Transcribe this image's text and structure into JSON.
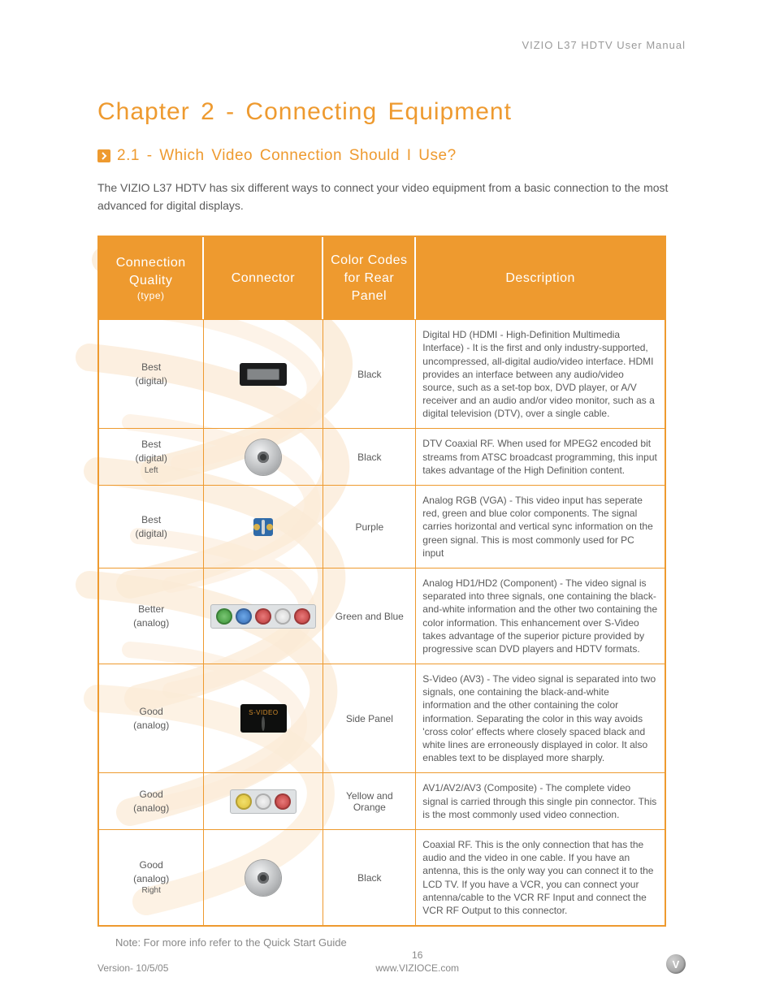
{
  "header": {
    "text": "VIZIO L37 HDTV User Manual"
  },
  "chapter_title": "Chapter 2 - Connecting Equipment",
  "section_title": "2.1 - Which Video Connection Should I Use?",
  "intro": "The VIZIO L37 HDTV has six different ways to connect your video equipment from a basic connection to the most advanced for digital displays.",
  "table": {
    "header_bg": "#ee9a2f",
    "header_fg": "#ffffff",
    "border_color": "#ee9a2f",
    "columns": [
      {
        "title": "Connection Quality",
        "sub": "(type)"
      },
      {
        "title": "Connector",
        "sub": ""
      },
      {
        "title": "Color Codes for Rear Panel",
        "sub": ""
      },
      {
        "title": "Description",
        "sub": ""
      }
    ],
    "rows": [
      {
        "quality": "Best",
        "quality_sub": "(digital)",
        "quality_sub2": "",
        "connector": "hdmi",
        "color_code": "Black",
        "description": "Digital HD (HDMI - High-Definition Multimedia Interface) - It is the first and only industry-supported, uncompressed, all-digital audio/video interface. HDMI provides an interface between any audio/video source, such as a set-top box, DVD player, or A/V receiver and an audio and/or video monitor, such as a digital television (DTV), over a single cable."
      },
      {
        "quality": "Best",
        "quality_sub": "(digital)",
        "quality_sub2": "Left",
        "connector": "coax",
        "color_code": "Black",
        "description": "DTV Coaxial RF.  When used for MPEG2 encoded bit streams from ATSC broadcast programming, this input takes advantage of the High Definition content."
      },
      {
        "quality": "Best",
        "quality_sub": "(digital)",
        "quality_sub2": "",
        "connector": "vga",
        "color_code": "Purple",
        "description": "Analog RGB (VGA) - This video input has seperate red, green and blue color components. The signal carries horizontal and vertical sync information on the green signal.  This is most commonly used for PC input"
      },
      {
        "quality": "Better",
        "quality_sub": "(analog)",
        "quality_sub2": "",
        "connector": "component",
        "color_code": "Green and Blue",
        "description": "Analog HD1/HD2 (Component) - The video signal is separated into three signals, one containing the black-and-white information and the other two containing the color information. This enhancement over S-Video takes advantage of the superior picture provided by progressive scan DVD players and HDTV formats."
      },
      {
        "quality": "Good",
        "quality_sub": "(analog)",
        "quality_sub2": "",
        "connector": "svideo",
        "color_code": "Side Panel",
        "description": "S-Video (AV3) - The video signal is separated into two signals, one containing the black-and-white information and the other containing the color information. Separating the color in this way avoids 'cross color' effects where closely spaced black and white lines are erroneously displayed in color.  It also enables text to be displayed more sharply."
      },
      {
        "quality": "Good",
        "quality_sub": "(analog)",
        "quality_sub2": "",
        "connector": "composite",
        "color_code": "Yellow and Orange",
        "description": "AV1/AV2/AV3 (Composite) - The complete video signal is carried through this single pin connector. This is the most commonly used video connection."
      },
      {
        "quality": "Good",
        "quality_sub": "(analog)",
        "quality_sub2": "Right",
        "connector": "coax",
        "color_code": "Black",
        "description": "Coaxial RF. This is the only connection that has the audio and the video in one cable. If you have an antenna, this is the only way you can connect it to the LCD TV. If you have a VCR, you can connect your antenna/cable to the VCR RF Input and connect the VCR RF Output to this connector."
      }
    ]
  },
  "note": "Note:  For more info refer to the Quick Start Guide",
  "footer": {
    "version": "Version- 10/5/05",
    "page": "16",
    "url": "www.VIZIOCE.com",
    "logo_letter": "V"
  },
  "colors": {
    "accent": "#ee9a2f",
    "text": "#5a5a5a",
    "muted": "#9a9a9a",
    "swirl": "#f4c489"
  }
}
